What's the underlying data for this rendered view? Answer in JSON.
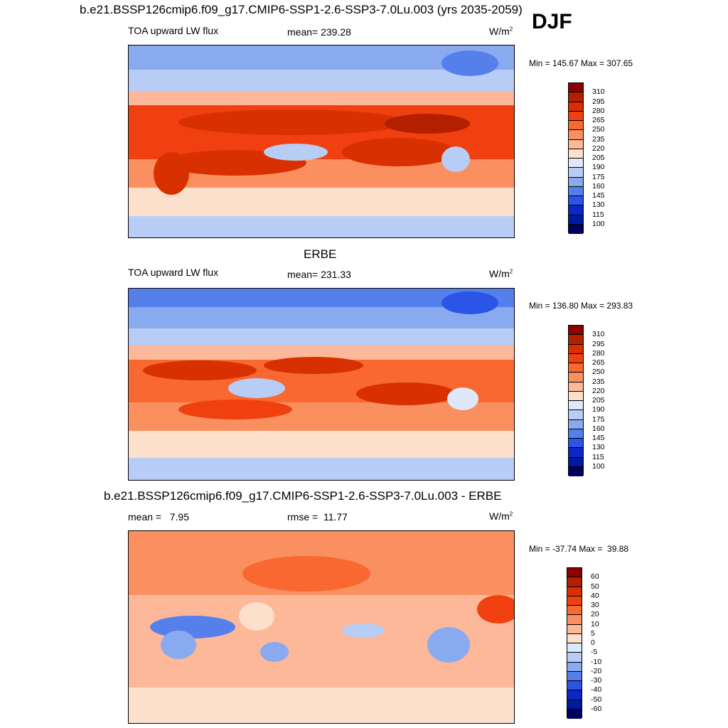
{
  "season": "DJF",
  "panels": [
    {
      "title": "b.e21.BSSP126cmip6.f09_g17.CMIP6-SSP1-2.6-SSP3-7.0Lu.003 (yrs 2035-2059)",
      "left_label": "TOA upward LW flux",
      "center_label": "mean= 239.28",
      "units": "W/m",
      "units_sup": "2",
      "minmax": "Min = 145.67 Max = 307.65",
      "colorbar": "abs"
    },
    {
      "title": "ERBE",
      "left_label": "TOA upward LW flux",
      "center_label": "mean= 231.33",
      "units": "W/m",
      "units_sup": "2",
      "minmax": "Min = 136.80 Max = 293.83",
      "colorbar": "abs"
    },
    {
      "title": "b.e21.BSSP126cmip6.f09_g17.CMIP6-SSP1-2.6-SSP3-7.0Lu.003 - ERBE",
      "left_label": "mean =   7.95",
      "center_label": "rmse =  11.77",
      "units": "W/m",
      "units_sup": "2",
      "minmax": "Min = -37.74 Max =  39.88",
      "colorbar": "diff"
    }
  ],
  "chart_data": [
    {
      "type": "heatmap",
      "title": "b.e21.BSSP126cmip6.f09_g17.CMIP6-SSP1-2.6-SSP3-7.0Lu.003 (yrs 2035-2059)",
      "variable": "TOA upward LW flux",
      "mean": 239.28,
      "min": 145.67,
      "max": 307.65,
      "units": "W/m2",
      "colorbar_levels": [
        100,
        115,
        130,
        145,
        160,
        175,
        190,
        205,
        220,
        235,
        250,
        265,
        280,
        295,
        310
      ]
    },
    {
      "type": "heatmap",
      "title": "ERBE",
      "variable": "TOA upward LW flux",
      "mean": 231.33,
      "min": 136.8,
      "max": 293.83,
      "units": "W/m2",
      "colorbar_levels": [
        100,
        115,
        130,
        145,
        160,
        175,
        190,
        205,
        220,
        235,
        250,
        265,
        280,
        295,
        310
      ]
    },
    {
      "type": "heatmap",
      "title": "b.e21.BSSP126cmip6.f09_g17.CMIP6-SSP1-2.6-SSP3-7.0Lu.003 - ERBE",
      "mean": 7.95,
      "rmse": 11.77,
      "min": -37.74,
      "max": 39.88,
      "units": "W/m2",
      "colorbar_levels": [
        -60,
        -50,
        -40,
        -30,
        -20,
        -10,
        -5,
        0,
        5,
        10,
        20,
        30,
        40,
        50,
        60
      ]
    }
  ],
  "colorbars": {
    "abs": {
      "labels": [
        "310",
        "295",
        "280",
        "265",
        "250",
        "235",
        "220",
        "205",
        "190",
        "175",
        "160",
        "145",
        "130",
        "115",
        "100"
      ],
      "colors": [
        "#8b0000",
        "#b22000",
        "#d83000",
        "#f04010",
        "#f86830",
        "#fa9060",
        "#fcb898",
        "#fde0cc",
        "#dde8fa",
        "#b8cdf5",
        "#8aaaf0",
        "#5580ec",
        "#2a55e6",
        "#0a28c8",
        "#001a9e",
        "#00005e"
      ]
    },
    "diff": {
      "labels": [
        "60",
        "50",
        "40",
        "30",
        "20",
        "10",
        "5",
        "0",
        "-5",
        "-10",
        "-20",
        "-30",
        "-40",
        "-50",
        "-60"
      ],
      "colors": [
        "#8b0000",
        "#b22000",
        "#d83000",
        "#f04010",
        "#f86830",
        "#fa9060",
        "#fcb898",
        "#fde0cc",
        "#dde8fa",
        "#b8cdf5",
        "#8aaaf0",
        "#5580ec",
        "#2a55e6",
        "#0a28c8",
        "#001a9e",
        "#00005e"
      ]
    }
  }
}
